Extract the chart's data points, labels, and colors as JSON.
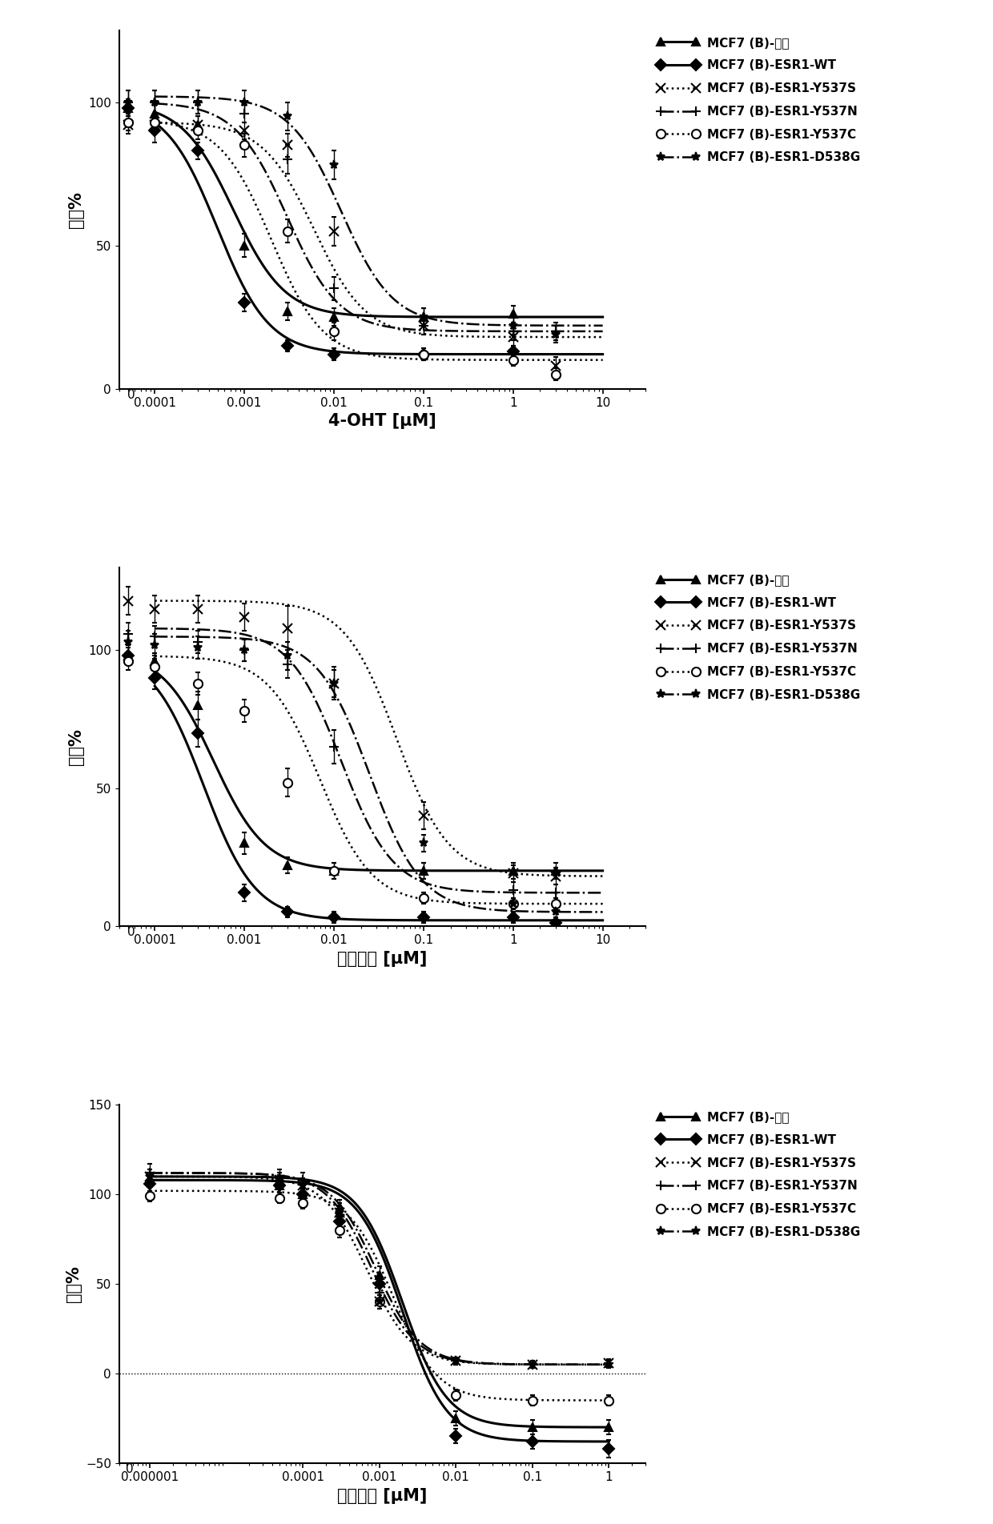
{
  "panels": [
    {
      "xlabel": "4-OHT [μM]",
      "ylabel": "对照%",
      "ylim": [
        0,
        125
      ],
      "yticks": [
        0,
        50,
        100
      ],
      "xlog_min": -4,
      "xlog_max": 1,
      "xtick_labels": [
        "0",
        "0.0001",
        "0.001",
        "0.01",
        "0.1",
        "1",
        "10"
      ],
      "xtick_vals_log": [
        -4,
        -3,
        -2,
        -1,
        0,
        1
      ],
      "has_zero_line": false,
      "series": [
        {
          "label": "MCF7 (B)-载体",
          "top": 100,
          "bottom": 25,
          "ec50": 0.00075,
          "hill": 1.5,
          "linestyle": "-",
          "marker": "^",
          "filled": true,
          "linewidth": 2.2
        },
        {
          "label": "MCF7 (B)-ESR1-WT",
          "top": 100,
          "bottom": 12,
          "ec50": 0.0005,
          "hill": 1.5,
          "linestyle": "-",
          "marker": "D",
          "filled": true,
          "linewidth": 2.2
        },
        {
          "label": "MCF7 (B)-ESR1-Y537S",
          "top": 93,
          "bottom": 18,
          "ec50": 0.006,
          "hill": 1.5,
          "linestyle": ":",
          "marker": "x",
          "filled": true,
          "linewidth": 1.8
        },
        {
          "label": "MCF7 (B)-ESR1-Y537N",
          "top": 100,
          "bottom": 20,
          "ec50": 0.003,
          "hill": 1.5,
          "linestyle": "-.",
          "marker": "+",
          "filled": true,
          "linewidth": 1.8
        },
        {
          "label": "MCF7 (B)-ESR1-Y537C",
          "top": 94,
          "bottom": 10,
          "ec50": 0.002,
          "hill": 1.5,
          "linestyle": ":",
          "marker": "o",
          "filled": false,
          "linewidth": 1.8
        },
        {
          "label": "MCF7 (B)-ESR1-D538G",
          "top": 102,
          "bottom": 22,
          "ec50": 0.012,
          "hill": 1.5,
          "linestyle": "-.",
          "marker": "*",
          "filled": true,
          "linewidth": 1.8
        }
      ],
      "data_points": [
        {
          "x": [
            5e-05,
            0.0001,
            0.0003,
            0.001,
            0.003,
            0.01,
            0.1,
            1.0
          ],
          "y": [
            98,
            96,
            92,
            50,
            27,
            25,
            25,
            26
          ],
          "yerr": [
            3,
            3,
            3,
            4,
            3,
            3,
            3,
            3
          ]
        },
        {
          "x": [
            5e-05,
            0.0001,
            0.0003,
            0.001,
            0.003,
            0.01,
            0.1,
            1.0
          ],
          "y": [
            98,
            90,
            83,
            30,
            15,
            12,
            12,
            13
          ],
          "yerr": [
            3,
            4,
            3,
            3,
            2,
            2,
            2,
            2
          ]
        },
        {
          "x": [
            5e-05,
            0.0001,
            0.0003,
            0.001,
            0.003,
            0.01,
            0.1,
            1.0,
            3.0
          ],
          "y": [
            92,
            92,
            92,
            90,
            85,
            55,
            22,
            18,
            8
          ],
          "yerr": [
            3,
            3,
            3,
            3,
            4,
            5,
            3,
            3,
            3
          ]
        },
        {
          "x": [
            5e-05,
            0.0001,
            0.0003,
            0.001,
            0.003,
            0.01,
            0.1,
            1.0,
            3.0
          ],
          "y": [
            100,
            100,
            100,
            96,
            80,
            35,
            22,
            20,
            20
          ],
          "yerr": [
            4,
            4,
            4,
            3,
            5,
            4,
            3,
            3,
            3
          ]
        },
        {
          "x": [
            5e-05,
            0.0001,
            0.0003,
            0.001,
            0.003,
            0.01,
            0.1,
            1.0,
            3.0
          ],
          "y": [
            93,
            93,
            90,
            85,
            55,
            20,
            12,
            10,
            5
          ],
          "yerr": [
            3,
            3,
            3,
            4,
            4,
            3,
            2,
            2,
            2
          ]
        },
        {
          "x": [
            5e-05,
            0.0001,
            0.0003,
            0.001,
            0.003,
            0.01,
            0.1,
            1.0,
            3.0
          ],
          "y": [
            100,
            100,
            100,
            100,
            95,
            78,
            25,
            22,
            19
          ],
          "yerr": [
            4,
            4,
            4,
            4,
            5,
            5,
            3,
            3,
            3
          ]
        }
      ]
    },
    {
      "xlabel": "雷洛普芬 [μM]",
      "ylabel": "对照%",
      "ylim": [
        0,
        130
      ],
      "yticks": [
        0,
        50,
        100
      ],
      "xlog_min": -4,
      "xlog_max": 1,
      "xtick_labels": [
        "0",
        "0.0001",
        "0.001",
        "0.01",
        "0.1",
        "1",
        "10"
      ],
      "xtick_vals_log": [
        -4,
        -3,
        -2,
        -1,
        0,
        1
      ],
      "has_zero_line": false,
      "series": [
        {
          "label": "MCF7 (B)-载体",
          "top": 100,
          "bottom": 20,
          "ec50": 0.00045,
          "hill": 1.5,
          "linestyle": "-",
          "marker": "^",
          "filled": true,
          "linewidth": 2.2
        },
        {
          "label": "MCF7 (B)-ESR1-WT",
          "top": 100,
          "bottom": 2,
          "ec50": 0.00035,
          "hill": 1.5,
          "linestyle": "-",
          "marker": "D",
          "filled": true,
          "linewidth": 2.2
        },
        {
          "label": "MCF7 (B)-ESR1-Y537S",
          "top": 118,
          "bottom": 18,
          "ec50": 0.05,
          "hill": 1.5,
          "linestyle": ":",
          "marker": "x",
          "filled": true,
          "linewidth": 1.8
        },
        {
          "label": "MCF7 (B)-ESR1-Y537N",
          "top": 108,
          "bottom": 12,
          "ec50": 0.012,
          "hill": 1.5,
          "linestyle": "-.",
          "marker": "+",
          "filled": true,
          "linewidth": 1.8
        },
        {
          "label": "MCF7 (B)-ESR1-Y537C",
          "top": 98,
          "bottom": 8,
          "ec50": 0.007,
          "hill": 1.5,
          "linestyle": ":",
          "marker": "o",
          "filled": false,
          "linewidth": 1.8
        },
        {
          "label": "MCF7 (B)-ESR1-D538G",
          "top": 105,
          "bottom": 5,
          "ec50": 0.025,
          "hill": 1.5,
          "linestyle": "-.",
          "marker": "*",
          "filled": true,
          "linewidth": 1.8
        }
      ],
      "data_points": [
        {
          "x": [
            5e-05,
            0.0001,
            0.0003,
            0.001,
            0.003,
            0.01,
            0.1,
            1.0,
            3.0
          ],
          "y": [
            98,
            96,
            80,
            30,
            22,
            20,
            20,
            20,
            20
          ],
          "yerr": [
            3,
            3,
            5,
            4,
            3,
            3,
            3,
            3,
            3
          ]
        },
        {
          "x": [
            5e-05,
            0.0001,
            0.0003,
            0.001,
            0.003,
            0.01,
            0.1,
            1.0,
            3.0
          ],
          "y": [
            98,
            90,
            70,
            12,
            5,
            3,
            3,
            3,
            1
          ],
          "yerr": [
            3,
            4,
            5,
            3,
            2,
            2,
            2,
            2,
            2
          ]
        },
        {
          "x": [
            5e-05,
            0.0001,
            0.0003,
            0.001,
            0.003,
            0.01,
            0.1,
            1.0,
            3.0
          ],
          "y": [
            118,
            115,
            115,
            112,
            108,
            88,
            40,
            19,
            18
          ],
          "yerr": [
            5,
            5,
            5,
            5,
            8,
            6,
            5,
            3,
            3
          ]
        },
        {
          "x": [
            5e-05,
            0.0001,
            0.0003,
            0.001,
            0.003,
            0.01,
            0.1,
            1.0,
            3.0
          ],
          "y": [
            106,
            105,
            103,
            100,
            95,
            65,
            20,
            13,
            12
          ],
          "yerr": [
            4,
            4,
            4,
            4,
            5,
            6,
            3,
            3,
            3
          ]
        },
        {
          "x": [
            5e-05,
            0.0001,
            0.0003,
            0.001,
            0.003,
            0.01,
            0.1,
            1.0,
            3.0
          ],
          "y": [
            96,
            94,
            88,
            78,
            52,
            20,
            10,
            8,
            8
          ],
          "yerr": [
            3,
            3,
            4,
            4,
            5,
            3,
            2,
            2,
            2
          ]
        },
        {
          "x": [
            5e-05,
            0.0001,
            0.0003,
            0.001,
            0.003,
            0.01,
            0.1,
            1.0,
            3.0
          ],
          "y": [
            103,
            102,
            101,
            100,
            98,
            88,
            30,
            8,
            5
          ],
          "yerr": [
            4,
            4,
            4,
            4,
            5,
            5,
            3,
            2,
            2
          ]
        }
      ]
    },
    {
      "xlabel": "氟维司群 [μM]",
      "ylabel": "对照%",
      "ylim": [
        -50,
        150
      ],
      "yticks": [
        -50,
        0,
        50,
        100,
        150
      ],
      "xlog_min": -6,
      "xlog_max": 0,
      "xtick_labels": [
        "0",
        "0.000001",
        "0.0001",
        "0.001",
        "0.01",
        "0.1",
        "1"
      ],
      "xtick_vals_log": [
        -6,
        -4,
        -3,
        -2,
        -1,
        0
      ],
      "has_zero_line": true,
      "series": [
        {
          "label": "MCF7 (B)-载体",
          "top": 110,
          "bottom": -30,
          "ec50": 0.002,
          "hill": 1.5,
          "linestyle": "-",
          "marker": "^",
          "filled": true,
          "linewidth": 2.2
        },
        {
          "label": "MCF7 (B)-ESR1-WT",
          "top": 108,
          "bottom": -38,
          "ec50": 0.002,
          "hill": 1.5,
          "linestyle": "-",
          "marker": "D",
          "filled": true,
          "linewidth": 2.2
        },
        {
          "label": "MCF7 (B)-ESR1-Y537S",
          "top": 110,
          "bottom": 5,
          "ec50": 0.0007,
          "hill": 1.5,
          "linestyle": ":",
          "marker": "x",
          "filled": true,
          "linewidth": 1.8
        },
        {
          "label": "MCF7 (B)-ESR1-Y537N",
          "top": 112,
          "bottom": 5,
          "ec50": 0.0008,
          "hill": 1.5,
          "linestyle": "-.",
          "marker": "+",
          "filled": true,
          "linewidth": 1.8
        },
        {
          "label": "MCF7 (B)-ESR1-Y537C",
          "top": 102,
          "bottom": -15,
          "ec50": 0.0015,
          "hill": 1.5,
          "linestyle": ":",
          "marker": "o",
          "filled": false,
          "linewidth": 1.8
        },
        {
          "label": "MCF7 (B)-ESR1-D538G",
          "top": 112,
          "bottom": 5,
          "ec50": 0.0009,
          "hill": 1.5,
          "linestyle": "-.",
          "marker": "*",
          "filled": true,
          "linewidth": 1.8
        }
      ],
      "data_points": [
        {
          "x": [
            1e-07,
            1e-06,
            5e-05,
            0.0001,
            0.0003,
            0.001,
            0.01,
            0.1,
            1.0
          ],
          "y": [
            110,
            108,
            105,
            100,
            90,
            55,
            -25,
            -30,
            -30
          ],
          "yerr": [
            4,
            4,
            4,
            3,
            5,
            5,
            4,
            4,
            4
          ]
        },
        {
          "x": [
            1e-07,
            1e-06,
            5e-05,
            0.0001,
            0.0003,
            0.001,
            0.01,
            0.1,
            1.0
          ],
          "y": [
            108,
            106,
            105,
            100,
            85,
            50,
            -35,
            -38,
            -42
          ],
          "yerr": [
            4,
            4,
            4,
            3,
            5,
            5,
            4,
            4,
            5
          ]
        },
        {
          "x": [
            1e-07,
            1e-06,
            5e-05,
            0.0001,
            0.0003,
            0.001,
            0.01,
            0.1,
            1.0
          ],
          "y": [
            110,
            110,
            108,
            105,
            90,
            40,
            7,
            5,
            6
          ],
          "yerr": [
            4,
            4,
            4,
            4,
            4,
            4,
            2,
            2,
            2
          ]
        },
        {
          "x": [
            1e-07,
            1e-06,
            5e-05,
            0.0001,
            0.0003,
            0.001,
            0.01,
            0.1,
            1.0
          ],
          "y": [
            112,
            112,
            110,
            108,
            92,
            45,
            7,
            5,
            6
          ],
          "yerr": [
            5,
            5,
            4,
            4,
            5,
            5,
            2,
            2,
            2
          ]
        },
        {
          "x": [
            1e-07,
            1e-06,
            5e-05,
            0.0001,
            0.0003,
            0.001,
            0.01,
            0.1,
            1.0
          ],
          "y": [
            100,
            99,
            98,
            95,
            80,
            40,
            -12,
            -15,
            -15
          ],
          "yerr": [
            3,
            3,
            3,
            3,
            4,
            4,
            3,
            3,
            3
          ]
        },
        {
          "x": [
            1e-07,
            1e-06,
            5e-05,
            0.0001,
            0.0003,
            0.001,
            0.01,
            0.1,
            1.0
          ],
          "y": [
            110,
            110,
            108,
            105,
            90,
            40,
            7,
            5,
            5
          ],
          "yerr": [
            4,
            4,
            4,
            4,
            4,
            4,
            2,
            2,
            2
          ]
        }
      ]
    }
  ],
  "figure_width": 12.4,
  "figure_height": 19.04,
  "background_color": "white",
  "axis_fontsize": 13,
  "label_fontsize": 15,
  "legend_fontsize": 11,
  "tick_fontsize": 11
}
